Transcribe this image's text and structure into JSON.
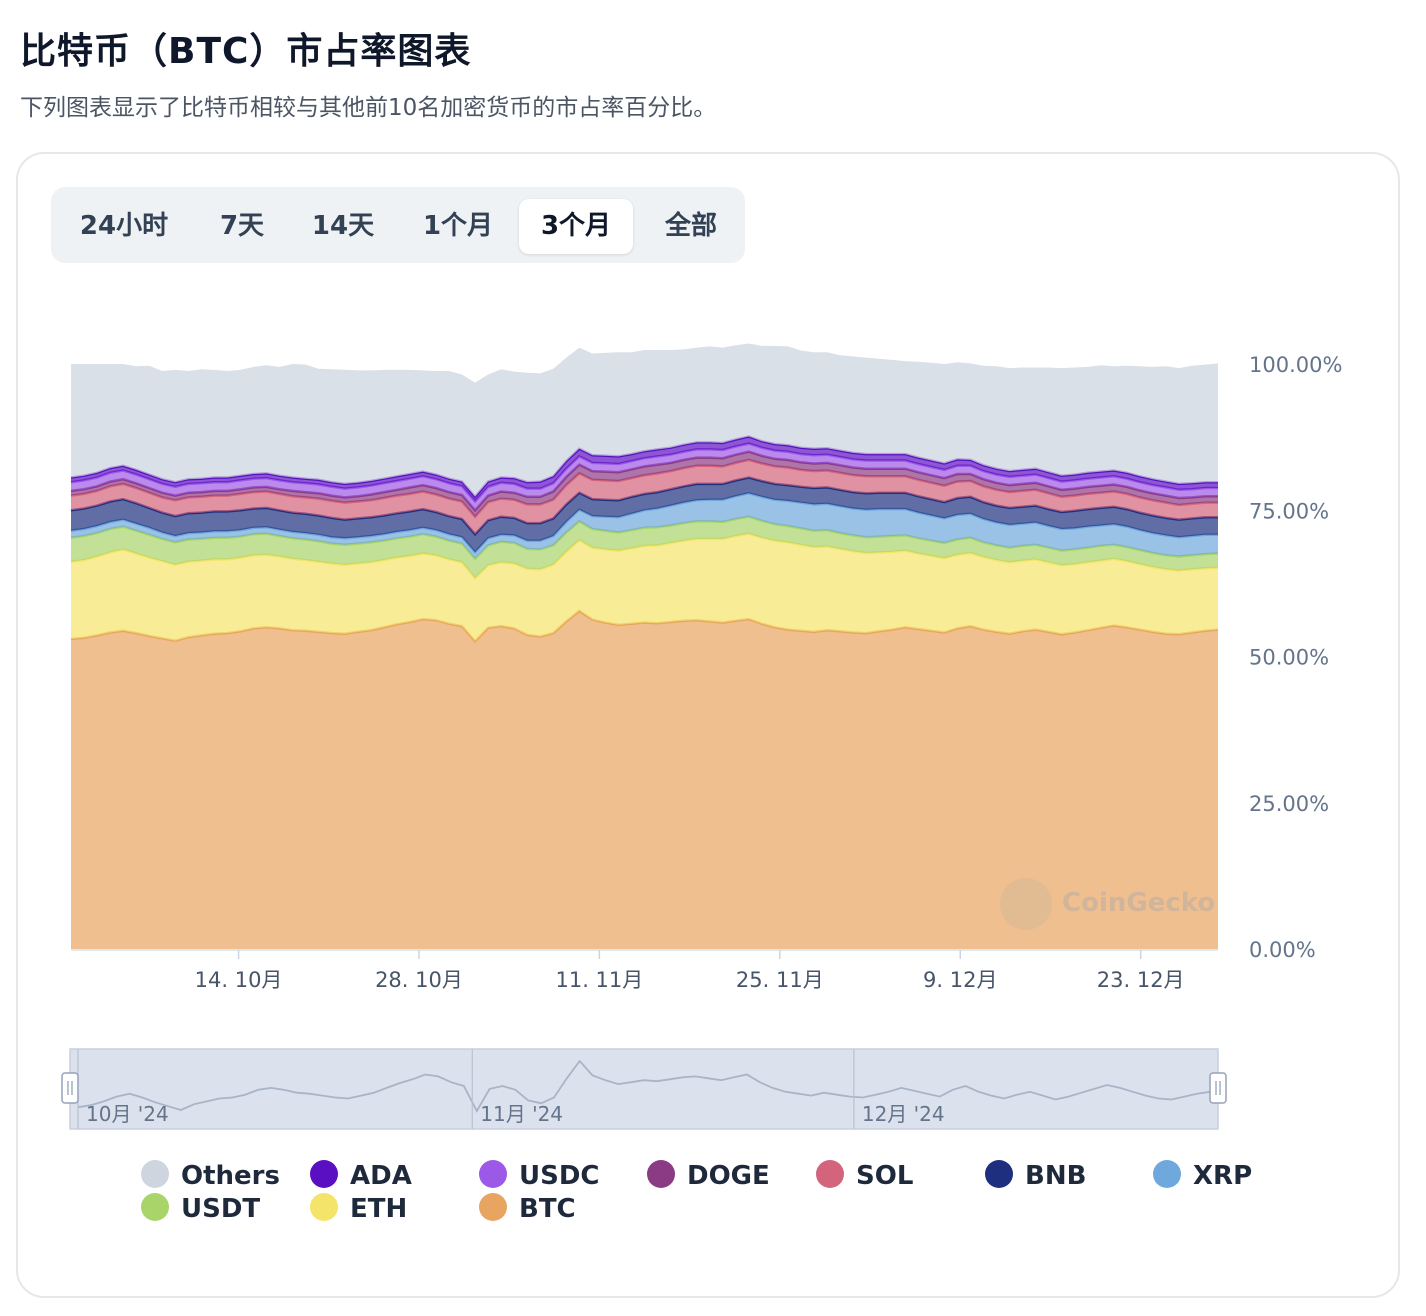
{
  "header": {
    "title": "比特币（BTC）市占率图表",
    "subtitle": "下列图表显示了比特币相较与其他前10名加密货币的市占率百分比。"
  },
  "tabs": [
    {
      "label": "24小时",
      "active": false
    },
    {
      "label": "7天",
      "active": false
    },
    {
      "label": "14天",
      "active": false
    },
    {
      "label": "1个月",
      "active": false
    },
    {
      "label": "3个月",
      "active": true
    },
    {
      "label": "全部",
      "active": false
    }
  ],
  "watermark": {
    "text": "CoinGecko"
  },
  "legend": [
    {
      "label": "Others",
      "color": "#ced5df"
    },
    {
      "label": "ADA",
      "color": "#5b0fc2"
    },
    {
      "label": "USDC",
      "color": "#9c58e6"
    },
    {
      "label": "DOGE",
      "color": "#8b3a84"
    },
    {
      "label": "SOL",
      "color": "#d3647c"
    },
    {
      "label": "BNB",
      "color": "#1e2f7f"
    },
    {
      "label": "XRP",
      "color": "#6fa8dc"
    },
    {
      "label": "USDT",
      "color": "#a9d46a"
    },
    {
      "label": "ETH",
      "color": "#f5e46a"
    },
    {
      "label": "BTC",
      "color": "#e8a461"
    }
  ],
  "chart_data": {
    "type": "area",
    "stacked": true,
    "title": "",
    "xlabel": "",
    "ylabel": "",
    "ylim": [
      0,
      100
    ],
    "yticks": [
      "100.00%",
      "75.00%",
      "50.00%",
      "25.00%",
      "0.00%"
    ],
    "xticks": [
      "14. 10月",
      "28. 10月",
      "11. 11月",
      "25. 11月",
      "9. 12月",
      "23. 12月"
    ],
    "navigator_labels": [
      "10月 '24",
      "11月 '24",
      "12月 '24"
    ],
    "x_start": "2024-10-01",
    "x_end": "2024-12-29",
    "grid": false,
    "legend_position": "bottom",
    "series": [
      {
        "name": "BTC",
        "values": [
          53.0,
          53.2,
          53.6,
          54.1,
          54.4,
          54.0,
          53.5,
          53.1,
          52.7,
          53.3,
          53.6,
          53.9,
          54.0,
          54.3,
          54.8,
          55.0,
          54.8,
          54.5,
          54.4,
          54.2,
          54.0,
          53.9,
          54.2,
          54.5,
          55.0,
          55.5,
          55.9,
          56.4,
          56.2,
          55.6,
          55.2,
          52.6,
          54.9,
          55.2,
          54.8,
          53.7,
          53.4,
          54.0,
          56.0,
          57.8,
          56.3,
          55.8,
          55.4,
          55.6,
          55.8,
          55.7,
          55.9,
          56.1,
          56.2,
          56.0,
          55.8,
          56.1,
          56.4,
          55.6,
          55.0,
          54.6,
          54.4,
          54.2,
          54.5,
          54.3,
          54.1,
          54.0,
          54.3,
          54.6,
          55.0,
          54.7,
          54.4,
          54.1,
          54.8,
          55.2,
          54.6,
          54.2,
          53.9,
          54.3,
          54.6,
          54.2,
          53.8,
          54.1,
          54.5,
          54.9,
          55.3,
          55.0,
          54.6,
          54.2,
          53.9,
          53.8,
          54.1,
          54.4,
          54.6
        ]
      },
      {
        "name": "ETH",
        "values": [
          13.2,
          13.3,
          13.5,
          13.7,
          13.9,
          13.6,
          13.4,
          13.2,
          13.0,
          12.9,
          12.8,
          12.7,
          12.6,
          12.6,
          12.5,
          12.4,
          12.3,
          12.2,
          12.1,
          12.0,
          11.9,
          11.8,
          11.7,
          11.6,
          11.5,
          11.4,
          11.3,
          11.2,
          11.1,
          11.0,
          10.9,
          10.8,
          10.7,
          10.9,
          11.1,
          11.3,
          11.5,
          11.7,
          11.9,
          12.1,
          12.3,
          12.5,
          12.7,
          12.9,
          13.1,
          13.3,
          13.5,
          13.7,
          13.9,
          14.1,
          14.3,
          14.5,
          14.6,
          14.7,
          14.8,
          14.9,
          14.7,
          14.5,
          14.3,
          14.1,
          13.9,
          13.7,
          13.5,
          13.3,
          13.1,
          12.9,
          12.8,
          12.7,
          12.6,
          12.5,
          12.4,
          12.3,
          12.2,
          12.1,
          12.0,
          11.9,
          11.8,
          11.7,
          11.6,
          11.5,
          11.4,
          11.3,
          11.2,
          11.1,
          11.0,
          10.9,
          10.8,
          10.7,
          10.6
        ]
      },
      {
        "name": "USDT",
        "values": [
          4.1,
          4.1,
          4.0,
          4.0,
          3.9,
          3.9,
          3.9,
          3.8,
          3.8,
          3.8,
          3.7,
          3.7,
          3.7,
          3.6,
          3.6,
          3.6,
          3.5,
          3.5,
          3.5,
          3.5,
          3.4,
          3.4,
          3.4,
          3.4,
          3.3,
          3.3,
          3.3,
          3.3,
          3.2,
          3.2,
          3.2,
          3.3,
          3.4,
          3.5,
          3.5,
          3.4,
          3.4,
          3.3,
          3.3,
          3.2,
          3.2,
          3.2,
          3.1,
          3.1,
          3.1,
          3.1,
          3.0,
          3.0,
          3.0,
          3.0,
          2.9,
          2.9,
          2.9,
          2.9,
          2.8,
          2.8,
          2.8,
          2.8,
          2.8,
          2.7,
          2.7,
          2.7,
          2.7,
          2.7,
          2.6,
          2.6,
          2.6,
          2.6,
          2.6,
          2.6,
          2.5,
          2.5,
          2.5,
          2.5,
          2.5,
          2.5,
          2.5,
          2.5,
          2.5,
          2.5,
          2.4,
          2.4,
          2.4,
          2.4,
          2.4,
          2.4,
          2.4,
          2.4,
          2.4
        ]
      },
      {
        "name": "XRP",
        "values": [
          1.2,
          1.2,
          1.2,
          1.2,
          1.2,
          1.2,
          1.2,
          1.1,
          1.1,
          1.1,
          1.1,
          1.1,
          1.1,
          1.1,
          1.1,
          1.1,
          1.1,
          1.1,
          1.1,
          1.1,
          1.1,
          1.1,
          1.1,
          1.1,
          1.1,
          1.1,
          1.1,
          1.1,
          1.1,
          1.1,
          1.1,
          1.1,
          1.2,
          1.2,
          1.3,
          1.4,
          1.5,
          1.6,
          1.8,
          2.0,
          2.2,
          2.4,
          2.6,
          2.8,
          3.0,
          3.2,
          3.4,
          3.5,
          3.6,
          3.7,
          3.8,
          3.9,
          4.0,
          4.1,
          4.2,
          4.3,
          4.4,
          4.5,
          4.5,
          4.6,
          4.6,
          4.7,
          4.7,
          4.6,
          4.5,
          4.4,
          4.3,
          4.2,
          4.2,
          4.1,
          4.0,
          3.9,
          3.9,
          3.8,
          3.8,
          3.7,
          3.7,
          3.6,
          3.6,
          3.5,
          3.5,
          3.5,
          3.4,
          3.4,
          3.4,
          3.3,
          3.3,
          3.3,
          3.2
        ]
      },
      {
        "name": "BNB",
        "values": [
          3.5,
          3.5,
          3.5,
          3.5,
          3.5,
          3.5,
          3.4,
          3.4,
          3.4,
          3.4,
          3.4,
          3.4,
          3.4,
          3.4,
          3.3,
          3.3,
          3.3,
          3.3,
          3.3,
          3.3,
          3.3,
          3.2,
          3.2,
          3.2,
          3.2,
          3.2,
          3.2,
          3.2,
          3.1,
          3.1,
          3.1,
          3.1,
          3.1,
          3.1,
          3.0,
          3.0,
          3.0,
          3.0,
          3.0,
          2.9,
          2.9,
          2.9,
          2.9,
          2.9,
          2.8,
          2.8,
          2.8,
          2.8,
          2.8,
          2.7,
          2.7,
          2.7,
          2.7,
          2.7,
          2.7,
          2.7,
          2.7,
          2.8,
          2.8,
          2.8,
          2.8,
          2.8,
          2.8,
          2.8,
          2.8,
          2.8,
          2.8,
          2.8,
          2.9,
          2.9,
          2.9,
          2.9,
          2.9,
          2.9,
          2.9,
          2.9,
          2.9,
          3.0,
          3.0,
          3.0,
          3.0,
          3.0,
          3.0,
          3.0,
          3.0,
          3.0,
          3.0,
          3.0,
          3.0
        ]
      },
      {
        "name": "SOL",
        "values": [
          2.5,
          2.5,
          2.5,
          2.6,
          2.6,
          2.6,
          2.6,
          2.6,
          2.7,
          2.7,
          2.7,
          2.7,
          2.7,
          2.8,
          2.8,
          2.8,
          2.8,
          2.8,
          2.8,
          2.9,
          2.9,
          2.9,
          2.9,
          2.9,
          3.0,
          3.0,
          3.0,
          3.0,
          3.0,
          3.0,
          3.0,
          3.0,
          3.1,
          3.1,
          3.1,
          3.2,
          3.2,
          3.2,
          3.3,
          3.3,
          3.3,
          3.3,
          3.3,
          3.2,
          3.2,
          3.2,
          3.1,
          3.1,
          3.1,
          3.1,
          3.0,
          3.0,
          3.0,
          3.0,
          3.0,
          3.0,
          2.9,
          2.9,
          2.9,
          2.9,
          2.9,
          2.9,
          2.8,
          2.8,
          2.8,
          2.8,
          2.8,
          2.8,
          2.8,
          2.7,
          2.7,
          2.7,
          2.7,
          2.7,
          2.7,
          2.7,
          2.6,
          2.6,
          2.6,
          2.6,
          2.6,
          2.6,
          2.6,
          2.6,
          2.6,
          2.5,
          2.5,
          2.5,
          2.5
        ]
      },
      {
        "name": "DOGE",
        "values": [
          0.8,
          0.8,
          0.8,
          0.8,
          0.8,
          0.8,
          0.8,
          0.8,
          0.8,
          0.8,
          0.8,
          0.8,
          0.8,
          0.8,
          0.8,
          0.8,
          0.8,
          0.9,
          0.9,
          0.9,
          0.9,
          0.9,
          0.9,
          1.0,
          1.0,
          1.0,
          1.1,
          1.1,
          1.1,
          1.1,
          1.1,
          1.1,
          1.1,
          1.2,
          1.2,
          1.3,
          1.3,
          1.4,
          1.4,
          1.5,
          1.5,
          1.5,
          1.5,
          1.5,
          1.5,
          1.5,
          1.4,
          1.4,
          1.4,
          1.4,
          1.4,
          1.4,
          1.4,
          1.3,
          1.3,
          1.3,
          1.3,
          1.3,
          1.3,
          1.3,
          1.3,
          1.3,
          1.3,
          1.3,
          1.3,
          1.3,
          1.3,
          1.3,
          1.3,
          1.2,
          1.2,
          1.2,
          1.2,
          1.2,
          1.2,
          1.2,
          1.2,
          1.2,
          1.2,
          1.2,
          1.2,
          1.2,
          1.2,
          1.2,
          1.2,
          1.2,
          1.1,
          1.1,
          1.1
        ]
      },
      {
        "name": "USDC",
        "values": [
          1.5,
          1.5,
          1.5,
          1.5,
          1.5,
          1.5,
          1.5,
          1.5,
          1.5,
          1.5,
          1.5,
          1.5,
          1.5,
          1.5,
          1.5,
          1.5,
          1.5,
          1.5,
          1.5,
          1.5,
          1.5,
          1.5,
          1.5,
          1.5,
          1.5,
          1.5,
          1.5,
          1.5,
          1.5,
          1.5,
          1.5,
          1.5,
          1.5,
          1.5,
          1.5,
          1.4,
          1.4,
          1.4,
          1.4,
          1.4,
          1.4,
          1.4,
          1.4,
          1.4,
          1.4,
          1.4,
          1.4,
          1.4,
          1.4,
          1.4,
          1.4,
          1.4,
          1.4,
          1.4,
          1.4,
          1.4,
          1.4,
          1.4,
          1.4,
          1.4,
          1.4,
          1.4,
          1.4,
          1.4,
          1.4,
          1.4,
          1.4,
          1.4,
          1.4,
          1.4,
          1.4,
          1.4,
          1.4,
          1.4,
          1.4,
          1.4,
          1.4,
          1.4,
          1.4,
          1.4,
          1.4,
          1.4,
          1.4,
          1.4,
          1.4,
          1.4,
          1.4,
          1.4,
          1.4
        ]
      },
      {
        "name": "ADA",
        "values": [
          0.8,
          0.8,
          0.8,
          0.8,
          0.8,
          0.8,
          0.8,
          0.8,
          0.8,
          0.8,
          0.8,
          0.8,
          0.8,
          0.8,
          0.8,
          0.8,
          0.8,
          0.8,
          0.8,
          0.8,
          0.8,
          0.8,
          0.8,
          0.8,
          0.8,
          0.8,
          0.8,
          0.8,
          0.8,
          0.8,
          0.8,
          0.8,
          0.9,
          0.9,
          1.0,
          1.1,
          1.2,
          1.2,
          1.3,
          1.3,
          1.3,
          1.3,
          1.3,
          1.2,
          1.2,
          1.2,
          1.2,
          1.2,
          1.2,
          1.2,
          1.2,
          1.2,
          1.2,
          1.1,
          1.1,
          1.1,
          1.1,
          1.1,
          1.1,
          1.1,
          1.1,
          1.1,
          1.1,
          1.1,
          1.1,
          1.1,
          1.1,
          1.1,
          1.1,
          1.0,
          1.0,
          1.0,
          1.0,
          1.0,
          1.0,
          1.0,
          1.0,
          1.0,
          1.0,
          1.0,
          1.0,
          1.0,
          1.0,
          1.0,
          1.0,
          1.0,
          1.0,
          1.0,
          1.0
        ]
      },
      {
        "name": "Others",
        "values": [
          19.4,
          19.1,
          18.6,
          17.8,
          17.4,
          17.7,
          18.6,
          18.5,
          19.2,
          18.5,
          18.7,
          18.4,
          18.2,
          18.1,
          18.3,
          18.5,
          18.6,
          19.4,
          19.5,
          19.0,
          19.3,
          19.5,
          19.2,
          18.9,
          18.6,
          18.2,
          17.8,
          17.3,
          17.7,
          18.4,
          18.3,
          19.5,
          18.3,
          18.5,
          18.2,
          18.7,
          18.5,
          18.4,
          17.7,
          17.3,
          17.4,
          17.6,
          17.8,
          17.4,
          17.3,
          17.0,
          16.7,
          16.3,
          16.2,
          16.4,
          16.3,
          16.1,
          15.9,
          16.3,
          16.8,
          16.9,
          16.6,
          16.5,
          16.4,
          16.3,
          16.5,
          16.5,
          16.3,
          16.1,
          15.9,
          16.4,
          16.7,
          17.0,
          16.6,
          16.5,
          17.0,
          17.5,
          17.6,
          17.5,
          17.3,
          17.9,
          18.4,
          18.3,
          18.1,
          18.2,
          17.8,
          18.3,
          18.8,
          19.2,
          19.7,
          19.8,
          20.1,
          20.1,
          20.3
        ]
      }
    ]
  }
}
